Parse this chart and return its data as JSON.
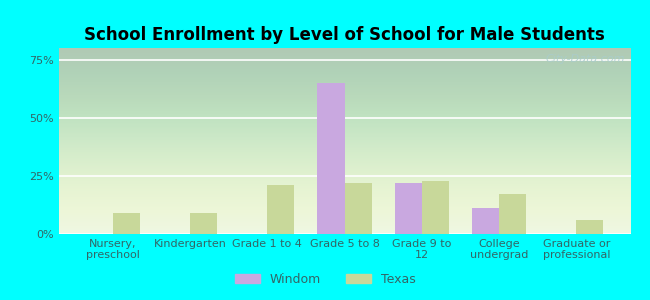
{
  "title": "School Enrollment by Level of School for Male Students",
  "categories": [
    "Nursery,\npreschool",
    "Kindergarten",
    "Grade 1 to 4",
    "Grade 5 to 8",
    "Grade 9 to\n12",
    "College\nundergrad",
    "Graduate or\nprofessional"
  ],
  "windom_values": [
    0,
    0,
    0,
    65,
    22,
    11,
    0
  ],
  "texas_values": [
    9,
    9,
    21,
    22,
    23,
    17,
    6
  ],
  "windom_color": "#c9a8e0",
  "texas_color": "#c8d89a",
  "bar_width": 0.35,
  "ylim": [
    0,
    80
  ],
  "yticks": [
    0,
    25,
    50,
    75
  ],
  "ytick_labels": [
    "0%",
    "25%",
    "50%",
    "75%"
  ],
  "background_color": "#00FFFF",
  "plot_bg_color": "#eaf5e2",
  "title_fontsize": 12,
  "tick_fontsize": 8,
  "legend_labels": [
    "Windom",
    "Texas"
  ],
  "watermark": "City-Data.com",
  "legend_fontsize": 9
}
